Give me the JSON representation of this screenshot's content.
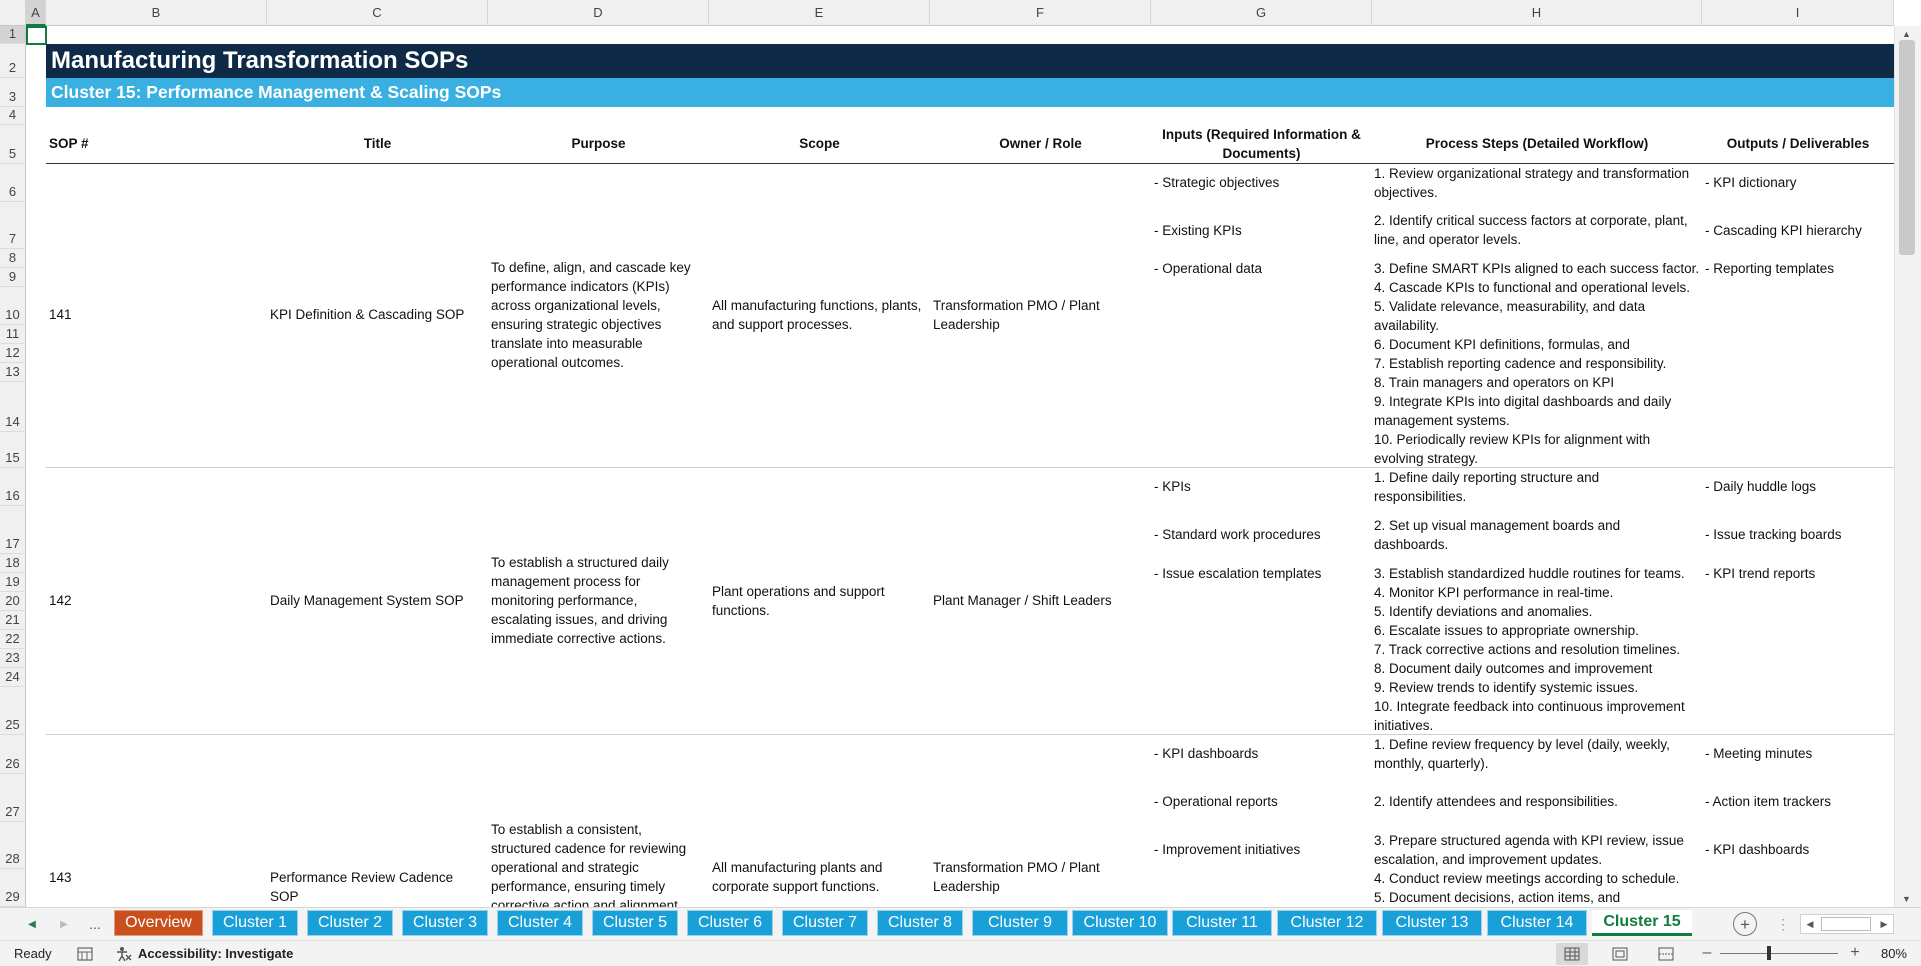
{
  "columns": [
    "A",
    "B",
    "C",
    "D",
    "E",
    "F",
    "G",
    "H",
    "I"
  ],
  "rows": [
    "1",
    "2",
    "3",
    "4",
    "5",
    "6",
    "7",
    "8",
    "9",
    "10",
    "11",
    "12",
    "13",
    "14",
    "15",
    "16",
    "17",
    "18",
    "19",
    "20",
    "21",
    "22",
    "23",
    "24",
    "25",
    "26",
    "27",
    "28",
    "29"
  ],
  "title": "Manufacturing Transformation SOPs",
  "subtitle": "Cluster 15: Performance Management & Scaling SOPs",
  "headers": {
    "sop": "SOP #",
    "title": "Title",
    "purpose": "Purpose",
    "scope": "Scope",
    "owner": "Owner / Role",
    "inputs": "Inputs (Required Information & Documents)",
    "steps": "Process Steps (Detailed Workflow)",
    "outputs": "Outputs / Deliverables"
  },
  "sops": [
    {
      "number": "141",
      "title": "KPI Definition & Cascading SOP",
      "purpose": "To define, align, and cascade key performance indicators (KPIs) across organizational levels, ensuring strategic objectives translate into measurable operational outcomes.",
      "scope": "All manufacturing functions, plants, and support processes.",
      "owner": "Transformation PMO / Plant Leadership",
      "inputs": [
        "- Strategic objectives",
        "- Existing KPIs",
        "- Operational data"
      ],
      "outputs": [
        "- KPI dictionary",
        "- Cascading KPI hierarchy",
        "- Reporting templates"
      ],
      "steps": [
        "1. Review organizational strategy and transformation objectives.",
        "2. Identify critical success factors at corporate, plant, line, and operator levels.",
        "3. Define SMART KPIs aligned to each success factor.",
        "4. Cascade KPIs to functional and operational levels.",
        "5. Validate relevance, measurability, and data availability.",
        "6. Document KPI definitions, formulas, and",
        "7. Establish reporting cadence and responsibility.",
        "8. Train managers and operators on KPI",
        "9. Integrate KPIs into digital dashboards and daily management systems.",
        "10. Periodically review KPIs for alignment with evolving strategy."
      ]
    },
    {
      "number": "142",
      "title": "Daily Management System SOP",
      "purpose": "To establish a structured daily management process for monitoring performance, escalating issues, and driving immediate corrective actions.",
      "scope": "Plant operations and support functions.",
      "owner": "Plant Manager / Shift Leaders",
      "inputs": [
        "- KPIs",
        "- Standard work procedures",
        "- Issue escalation templates"
      ],
      "outputs": [
        "- Daily huddle logs",
        "- Issue tracking boards",
        "- KPI trend reports"
      ],
      "steps": [
        "1. Define daily reporting structure and responsibilities.",
        "2. Set up visual management boards and dashboards.",
        "3. Establish standardized huddle routines for teams.",
        "4. Monitor KPI performance in real-time.",
        "5. Identify deviations and anomalies.",
        "6. Escalate issues to appropriate ownership.",
        "7. Track corrective actions and resolution timelines.",
        "8. Document daily outcomes and improvement",
        "9. Review trends to identify systemic issues.",
        "10. Integrate feedback into continuous improvement initiatives."
      ]
    },
    {
      "number": "143",
      "title": "Performance Review Cadence SOP",
      "purpose": "To establish a consistent, structured cadence for reviewing operational and strategic performance, ensuring timely corrective action and alignment",
      "scope": "All manufacturing plants and corporate support functions.",
      "owner": "Transformation PMO / Plant Leadership",
      "inputs": [
        "- KPI dashboards",
        "- Operational reports",
        "- Improvement initiatives"
      ],
      "outputs": [
        "- Meeting minutes",
        "- Action item trackers",
        "- KPI dashboards"
      ],
      "steps": [
        "1. Define review frequency by level (daily, weekly, monthly, quarterly).",
        "2. Identify attendees and responsibilities.",
        "3. Prepare structured agenda with KPI review, issue escalation, and improvement updates.",
        "4. Conduct review meetings according to schedule.",
        "5. Document decisions, action items, and"
      ]
    }
  ],
  "tabs": {
    "ellipsis": "...",
    "sheets": [
      "Overview",
      "Cluster 1",
      "Cluster 2",
      "Cluster 3",
      "Cluster 4",
      "Cluster 5",
      "Cluster 6",
      "Cluster 7",
      "Cluster 8",
      "Cluster 9",
      "Cluster 10",
      "Cluster 11",
      "Cluster 12",
      "Cluster 13",
      "Cluster 14",
      "Cluster 15"
    ],
    "active": "Cluster 15"
  },
  "status": {
    "ready": "Ready",
    "accessibility": "Accessibility: Investigate",
    "zoom": "80%"
  },
  "colors": {
    "title_band": "#0f2a46",
    "subtitle_band": "#3ab0e2",
    "tab_blue": "#1aa0d8",
    "tab_overview": "#c9501c",
    "active_tab_text": "#107c41"
  },
  "icons": [
    "scroll-left-icon",
    "scroll-right-icon",
    "add-sheet-icon",
    "normal-view-icon",
    "page-layout-icon",
    "page-break-icon",
    "macro-icon",
    "accessibility-icon"
  ]
}
